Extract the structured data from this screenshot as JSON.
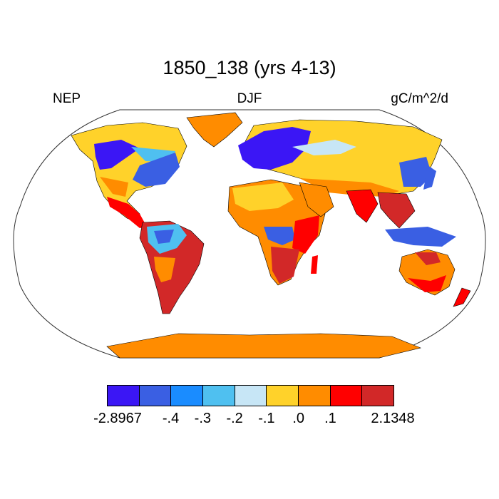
{
  "title": "1850_138 (yrs 4-13)",
  "left_label": "NEP",
  "center_label": "DJF",
  "right_label": "gC/m^2/d",
  "legend": {
    "colors": [
      "#3b16f5",
      "#3a5fe3",
      "#1a8cff",
      "#4fc0f0",
      "#c7e6f6",
      "#ffd22a",
      "#ff8c00",
      "#ff0000",
      "#d22828"
    ],
    "ticks": [
      "-2.8967",
      "-.4",
      "-.3",
      "-.2",
      "-.1",
      ".0",
      ".1",
      "2.1348"
    ]
  },
  "map": {
    "projection": "robinson",
    "ocean_color": "#ffffff",
    "land_colors": {
      "strong_negative": "#3b16f5",
      "negative": "#3a5fe3",
      "mid_negative": "#1a8cff",
      "light_negative": "#4fc0f0",
      "pale": "#c7e6f6",
      "near_zero": "#ffd22a",
      "positive": "#ff8c00",
      "high": "#ff0000",
      "max": "#d22828"
    }
  }
}
